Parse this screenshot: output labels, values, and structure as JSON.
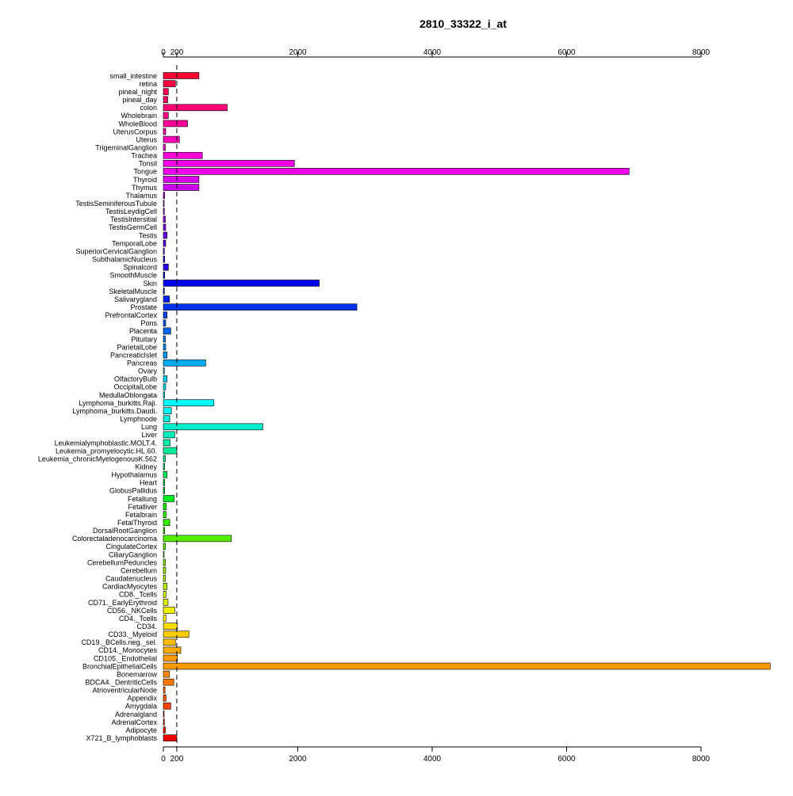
{
  "chart_data": {
    "type": "bar",
    "orientation": "horizontal",
    "title": "2810_33322_i_at",
    "xlabel": "",
    "ylabel": "",
    "xlim": [
      0,
      8000
    ],
    "x_ticks": [
      0,
      200,
      2000,
      4000,
      6000,
      8000
    ],
    "x_tick_labels_top": [
      "0",
      "200",
      "2000",
      "4000",
      "6000",
      "8000"
    ],
    "x_tick_labels_bottom": [
      "0",
      "200",
      "2000",
      "4000",
      "6000",
      "8000"
    ],
    "reference_line": 200,
    "grid": false,
    "categories": [
      "small_intestine",
      "retina",
      "pineal_night",
      "pineal_day",
      "colon",
      "Wholebrain",
      "WholeBlood",
      "UterusCorpus",
      "Uterus",
      "TrigeminalGanglion",
      "Trachea",
      "Tonsil",
      "Tongue",
      "Thyroid",
      "Thymus",
      "Thalamus",
      "TestisSeminiferousTubule",
      "TestisLeydigCell",
      "TestisIntersitial",
      "TestisGermCell",
      "Testis",
      "TemporalLobe",
      "SuperiorCervicalGanglion",
      "SubthalamicNucleus",
      "Spinalcord",
      "SmoothMuscle",
      "Skin",
      "SkeletalMuscle",
      "Salivarygland",
      "Prostate",
      "PrefrontalCortex",
      "Pons",
      "Placenta",
      "Pituitary",
      "ParietalLobe",
      "PancreaticIslet",
      "Pancreas",
      "Ovary",
      "OlfactoryBulb",
      "OccipitalLobe",
      "MedullaOblongata",
      "Lymphoma_burkitts.Raji.",
      "Lymphoma_burkitts.Daudi.",
      "Lymphnode",
      "Lung",
      "Liver",
      "Leukemialymphoblastic.MOLT.4.",
      "Leukemia_promyelocytic.HL.60.",
      "Leukemia_chronicMyelogenousK.562",
      "Kidney",
      "Hypothalamus",
      "Heart",
      "GlobusPallidus",
      "Fetallung",
      "Fetalliver",
      "Fetalbrain",
      "FetalThyroid",
      "DorsalRootGanglion",
      "Colorectaladenocarcinoma",
      "CingulateCortex",
      "CiliaryGanglion",
      "CerebellumPeduncles",
      "Cerebellum",
      "Caudatenucleus",
      "CardiacMyocytes",
      "CD8._Tcells",
      "CD71._EarlyErythroid",
      "CD56._NKCells",
      "CD4._Tcells",
      "CD34.",
      "CD33._Myeloid",
      "CD19._BCells.neg._sel.",
      "CD14._Monocytes",
      "CD105._Endothelial",
      "BronchialEpithelialCells",
      "Bonemarrow",
      "BDCA4._DentriticCells",
      "AtrioventricularNode",
      "Appendix",
      "Amygdala",
      "Adrenalgland",
      "AdrenalCortex",
      "Adipocyte",
      "X721_B_lymphoblasts"
    ],
    "values": [
      530,
      180,
      75,
      65,
      950,
      75,
      360,
      35,
      240,
      30,
      580,
      1950,
      6930,
      530,
      530,
      20,
      10,
      15,
      30,
      35,
      55,
      35,
      15,
      20,
      75,
      20,
      2320,
      15,
      90,
      2880,
      55,
      35,
      110,
      30,
      35,
      55,
      630,
      15,
      55,
      35,
      20,
      750,
      120,
      95,
      1480,
      170,
      100,
      200,
      30,
      20,
      55,
      20,
      20,
      160,
      45,
      40,
      95,
      20,
      1010,
      30,
      10,
      30,
      35,
      30,
      55,
      40,
      70,
      170,
      40,
      210,
      380,
      180,
      260,
      210,
      9030,
      90,
      155,
      25,
      40,
      110,
      10,
      15,
      30,
      200
    ],
    "colors": [
      "#ff0033",
      "#ff0044",
      "#ff0055",
      "#ff0066",
      "#ff0077",
      "#ff0088",
      "#ff0099",
      "#ff00aa",
      "#ff00bb",
      "#ff00cc",
      "#ff00dd",
      "#f500e6",
      "#ee00ee",
      "#dd00ee",
      "#cc00ee",
      "#bb00ee",
      "#aa00ee",
      "#9900ee",
      "#8800ee",
      "#7700ee",
      "#6600ee",
      "#5500ee",
      "#4400ee",
      "#3300ee",
      "#2200ee",
      "#1100ee",
      "#0000ee",
      "#0011ee",
      "#0022ee",
      "#0033ee",
      "#0044ee",
      "#0055ee",
      "#0066ee",
      "#0077ee",
      "#0088ee",
      "#0099ee",
      "#00aaee",
      "#00bbee",
      "#00ccee",
      "#00ddee",
      "#00eeee",
      "#00ffff",
      "#00f5ee",
      "#00eedd",
      "#00eecc",
      "#00eebb",
      "#00eeaa",
      "#00ee99",
      "#00ee88",
      "#00ee77",
      "#00ee55",
      "#00ee44",
      "#00ee33",
      "#00ee22",
      "#11ee00",
      "#22ee00",
      "#33ee00",
      "#44ee00",
      "#55ee00",
      "#66ee00",
      "#77ee00",
      "#88ee00",
      "#99ee00",
      "#aaee00",
      "#bbee00",
      "#ccee00",
      "#ddee00",
      "#eeee00",
      "#ffee00",
      "#ffdd00",
      "#ffcc00",
      "#ffbb00",
      "#ffaa00",
      "#ff9900",
      "#ff9900",
      "#ff8800",
      "#ff7700",
      "#ff6600",
      "#ff5500",
      "#ff4400",
      "#ff3300",
      "#ff2200",
      "#ff1100",
      "#ee0000"
    ]
  }
}
